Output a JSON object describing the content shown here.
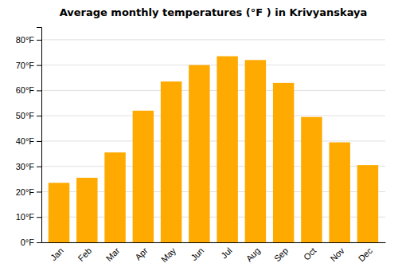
{
  "chart_data": {
    "type": "bar",
    "title": "Average monthly temperatures (°F ) in Krivyanskaya",
    "categories": [
      "Jan",
      "Feb",
      "Mar",
      "Apr",
      "May",
      "Jun",
      "Jul",
      "Aug",
      "Sep",
      "Oct",
      "Nov",
      "Dec"
    ],
    "values": [
      23.5,
      25.5,
      35.5,
      52.0,
      63.5,
      70.0,
      73.5,
      72.0,
      63.0,
      49.5,
      39.5,
      30.5
    ],
    "color": "#FFAA00",
    "ylim": [
      0,
      85
    ],
    "yticks": [
      {
        "value": 0,
        "label": "0°F"
      },
      {
        "value": 10,
        "label": "10°F"
      },
      {
        "value": 20,
        "label": "20°F"
      },
      {
        "value": 30,
        "label": "30°F"
      },
      {
        "value": 40,
        "label": "40°F"
      },
      {
        "value": 50,
        "label": "50°F"
      },
      {
        "value": 60,
        "label": "60°F"
      },
      {
        "value": 70,
        "label": "70°F"
      },
      {
        "value": 80,
        "label": "80°F"
      }
    ],
    "grid": true
  }
}
